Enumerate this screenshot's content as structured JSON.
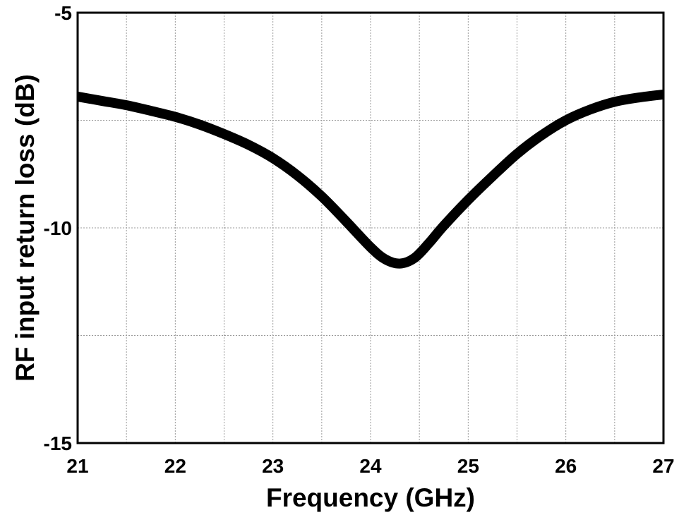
{
  "chart_data": {
    "type": "line",
    "title": "",
    "xlabel": "Frequency (GHz)",
    "ylabel": "RF input return loss (dB)",
    "xlim": [
      21,
      27
    ],
    "ylim": [
      -15,
      -5
    ],
    "x_ticks": [
      21,
      22,
      23,
      24,
      25,
      26,
      27
    ],
    "y_ticks": [
      -15,
      -10,
      -5
    ],
    "x_tick_labels": [
      "21",
      "22",
      "23",
      "24",
      "25",
      "26",
      "27"
    ],
    "y_tick_labels": [
      "-15",
      "-10",
      "-5"
    ],
    "grid": true,
    "legend": "none",
    "series": [
      {
        "color": "#000000",
        "x": [
          21.0,
          21.25,
          21.5,
          21.75,
          22.0,
          22.25,
          22.5,
          22.75,
          23.0,
          23.25,
          23.5,
          23.75,
          24.0,
          24.15,
          24.3,
          24.45,
          24.6,
          24.75,
          25.0,
          25.25,
          25.5,
          25.75,
          26.0,
          26.25,
          26.5,
          26.75,
          27.0
        ],
        "y": [
          -6.95,
          -7.05,
          -7.15,
          -7.28,
          -7.42,
          -7.6,
          -7.82,
          -8.07,
          -8.38,
          -8.78,
          -9.27,
          -9.85,
          -10.45,
          -10.73,
          -10.83,
          -10.7,
          -10.35,
          -9.95,
          -9.35,
          -8.8,
          -8.28,
          -7.85,
          -7.5,
          -7.25,
          -7.07,
          -6.97,
          -6.9
        ]
      }
    ]
  }
}
